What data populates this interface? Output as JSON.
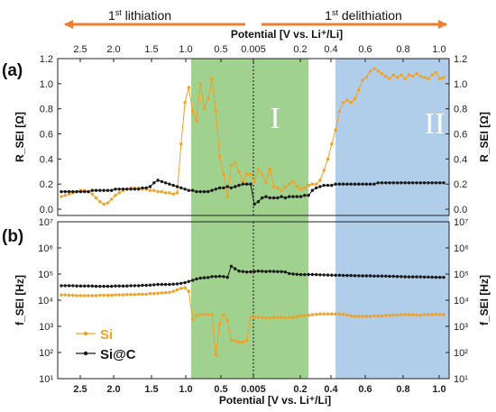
{
  "chart_data": [
    {
      "panel": "(a)",
      "type": "line",
      "top_label": "Potential [V vs. Li⁺/Li]",
      "ylabel_left": "R_SEI [Ω]",
      "ylabel_right": "R_SEI [Ω]",
      "ylim": [
        -0.05,
        1.2
      ],
      "yticks": [
        "0.0",
        "0.2",
        "0.4",
        "0.6",
        "0.8",
        "1.0",
        "1.2"
      ],
      "x_ticks_top": [
        "2.5",
        "2.0",
        "1.5",
        "1.0",
        "0.5",
        "0.005",
        "0.2",
        "0.4",
        "0.6",
        "0.8",
        "1.0"
      ],
      "series": [
        {
          "name": "Si",
          "color": "#f3a124",
          "values": [
            0.1,
            0.11,
            0.12,
            0.13,
            0.14,
            0.15,
            0.15,
            0.14,
            0.12,
            0.09,
            0.06,
            0.04,
            0.05,
            0.08,
            0.11,
            0.13,
            0.15,
            0.16,
            0.17,
            0.17,
            0.17,
            0.16,
            0.16,
            0.15,
            0.15,
            0.14,
            0.14,
            0.13,
            0.13,
            0.12,
            0.13,
            0.52,
            0.85,
            0.97,
            0.78,
            0.7,
            1.0,
            0.8,
            0.88,
            1.04,
            0.78,
            0.42,
            0.28,
            0.1,
            0.35,
            0.37,
            0.3,
            0.22,
            0.28,
            0.28,
            0.22,
            0.32,
            0.28,
            0.21,
            0.32,
            0.18,
            0.17,
            0.15,
            0.18,
            0.2,
            0.22,
            0.18,
            0.16,
            0.17,
            0.19,
            0.2,
            0.2,
            0.23,
            0.31,
            0.4,
            0.52,
            0.63,
            0.78,
            0.85,
            0.87,
            0.85,
            0.88,
            0.95,
            1.03,
            1.05,
            1.1,
            1.12,
            1.1,
            1.08,
            1.06,
            1.04,
            1.07,
            1.05,
            1.07,
            1.04,
            1.07,
            1.06,
            1.08,
            1.06,
            1.05,
            1.04,
            1.07,
            1.09,
            1.04,
            1.05
          ]
        },
        {
          "name": "Si@C",
          "color": "#1a1a1a",
          "values": [
            0.14,
            0.14,
            0.14,
            0.14,
            0.14,
            0.14,
            0.14,
            0.14,
            0.15,
            0.15,
            0.15,
            0.15,
            0.15,
            0.15,
            0.16,
            0.16,
            0.16,
            0.16,
            0.16,
            0.16,
            0.16,
            0.17,
            0.17,
            0.18,
            0.21,
            0.23,
            0.22,
            0.21,
            0.2,
            0.19,
            0.18,
            0.17,
            0.16,
            0.15,
            0.15,
            0.14,
            0.14,
            0.14,
            0.14,
            0.15,
            0.16,
            0.17,
            0.17,
            0.18,
            0.17,
            0.18,
            0.19,
            0.2,
            0.2,
            0.2,
            0.04,
            0.06,
            0.09,
            0.1,
            0.09,
            0.09,
            0.09,
            0.1,
            0.09,
            0.1,
            0.1,
            0.1,
            0.1,
            0.11,
            0.11,
            0.15,
            0.17,
            0.18,
            0.19,
            0.19,
            0.19,
            0.2,
            0.2,
            0.2,
            0.2,
            0.2,
            0.2,
            0.2,
            0.2,
            0.2,
            0.2,
            0.2,
            0.21,
            0.21,
            0.21,
            0.21,
            0.21,
            0.21,
            0.21,
            0.21,
            0.21,
            0.21,
            0.21,
            0.21,
            0.21,
            0.21,
            0.21,
            0.21,
            0.21,
            0.21
          ]
        }
      ]
    },
    {
      "panel": "(b)",
      "type": "line",
      "xlabel": "Potential [V vs. Li⁺/Li]",
      "ylabel_left": "f_SEI [Hz]",
      "ylabel_right": "f_SEI [Hz]",
      "yscale": "log",
      "ylim": [
        10,
        10000000
      ],
      "yticks": [
        "10¹",
        "10²",
        "10³",
        "10⁴",
        "10⁵",
        "10⁶",
        "10⁷"
      ],
      "x_ticks_bottom": [
        "2.5",
        "2.0",
        "1.5",
        "1.0",
        "0.5",
        "0.005",
        "0.2",
        "0.4",
        "0.6",
        "0.8",
        "1.0"
      ],
      "series": [
        {
          "name": "Si",
          "color": "#f3a124",
          "values": [
            16000,
            16000,
            15500,
            15500,
            15000,
            15000,
            15000,
            15000,
            15000,
            15000,
            15500,
            15500,
            15500,
            15500,
            16000,
            16000,
            16000,
            16500,
            16500,
            16500,
            17000,
            17000,
            17000,
            18000,
            18000,
            18500,
            19000,
            19500,
            20000,
            22000,
            25000,
            28000,
            30000,
            22000,
            1800,
            2600,
            2800,
            2800,
            2800,
            2800,
            80,
            1200,
            2800,
            1700,
            300,
            280,
            250,
            250,
            290,
            2200,
            2200,
            2200,
            2200,
            2100,
            2100,
            2200,
            2200,
            2200,
            2100,
            2200,
            2200,
            2400,
            2500,
            2600,
            2700,
            2800,
            2900,
            3000,
            3000,
            3000,
            3000,
            3000,
            3000,
            2900,
            2700,
            2500,
            2400,
            2400,
            2400,
            2400,
            2400,
            2500,
            2500,
            2500,
            2600,
            2600,
            2700,
            2700,
            2800,
            2800,
            2800,
            2800,
            2700,
            2700,
            2800,
            2800,
            2800,
            2900,
            2800,
            2800
          ]
        },
        {
          "name": "Si@C",
          "color": "#1a1a1a",
          "values": [
            36000,
            36000,
            36000,
            36000,
            35000,
            35000,
            35000,
            35000,
            35000,
            34000,
            34000,
            34000,
            34000,
            34000,
            35000,
            35000,
            35000,
            35000,
            36000,
            36000,
            36000,
            37000,
            37000,
            38000,
            39000,
            40000,
            40000,
            40000,
            40000,
            41000,
            42000,
            44000,
            47000,
            52000,
            58000,
            65000,
            70000,
            72000,
            74000,
            80000,
            80000,
            82000,
            80000,
            75000,
            200000,
            160000,
            130000,
            125000,
            120000,
            122000,
            125000,
            130000,
            128000,
            125000,
            128000,
            126000,
            125000,
            124000,
            120000,
            105000,
            100000,
            98000,
            95000,
            95000,
            96000,
            96000,
            95000,
            94000,
            93000,
            92000,
            91000,
            90000,
            90000,
            89000,
            88000,
            88000,
            87000,
            86000,
            85000,
            85000,
            85000,
            84000,
            84000,
            84000,
            83000,
            82000,
            82000,
            81000,
            80000,
            79000,
            78000,
            78000,
            78000,
            78000,
            77000,
            77000,
            76000,
            75000,
            75000,
            75000
          ]
        }
      ]
    }
  ],
  "header": {
    "lithiation_label": "1st lithiation",
    "delithiation_label": "1st delithiation"
  },
  "regions": {
    "region1_label": "I",
    "region2_label": "II",
    "region1_color": "#8fc97b",
    "region2_color": "#a7c8e8"
  },
  "legend": {
    "si_label": "Si",
    "sic_label": "Si@C"
  },
  "colors": {
    "accent_arrow": "#ef7d32"
  }
}
